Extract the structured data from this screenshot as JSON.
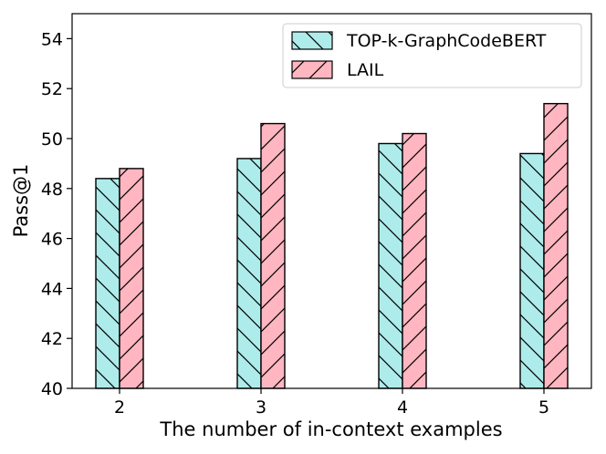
{
  "chart_data": {
    "type": "bar",
    "categories": [
      "2",
      "3",
      "4",
      "5"
    ],
    "series": [
      {
        "name": "TOP-k-GraphCodeBERT",
        "values": [
          48.4,
          49.2,
          49.8,
          49.4
        ],
        "color": "#aeeceb",
        "hatch": "backslash"
      },
      {
        "name": "LAIL",
        "values": [
          48.8,
          50.6,
          50.2,
          51.4
        ],
        "color": "#ffb6c1",
        "hatch": "slash"
      }
    ],
    "xlabel": "The number of in-context examples",
    "ylabel": "Pass@1",
    "ylim": [
      40,
      55
    ],
    "yticks": [
      40,
      42,
      44,
      46,
      48,
      50,
      52,
      54
    ],
    "grid": false,
    "legend_position": "top-right"
  }
}
